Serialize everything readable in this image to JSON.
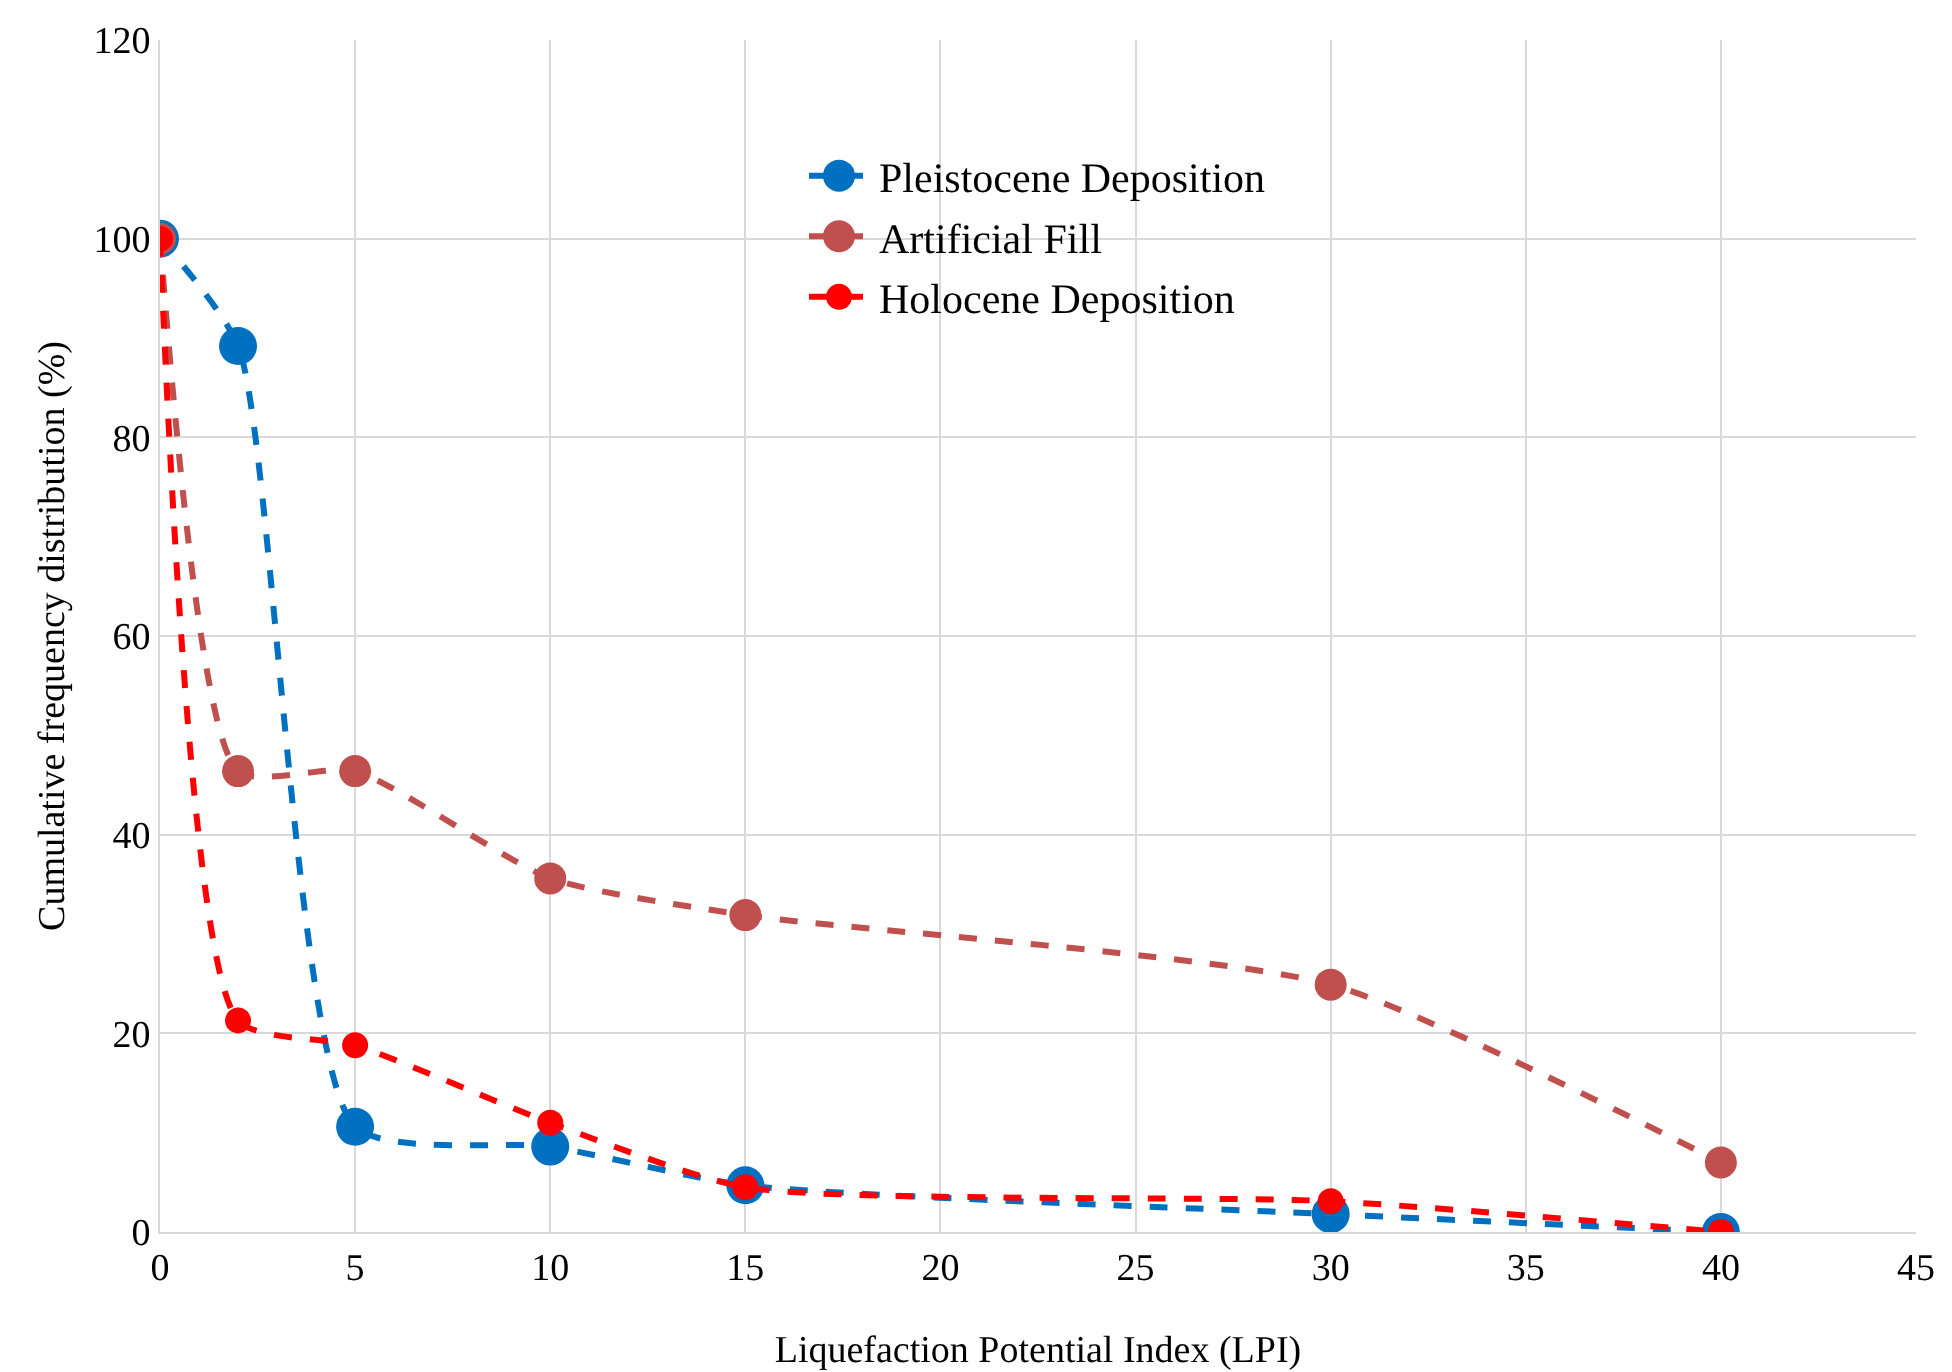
{
  "chart_data": {
    "type": "line",
    "xlabel": "Liquefaction Potential Index (LPI)",
    "ylabel": "Cumulative frequency distribution (%)",
    "x": [
      0,
      2,
      5,
      10,
      15,
      30,
      40
    ],
    "series": [
      {
        "name": "Pleistocene Deposition",
        "color": "#0070c0",
        "values": [
          100,
          89.2,
          10.6,
          8.6,
          4.7,
          1.8,
          0
        ]
      },
      {
        "name": "Artificial Fill",
        "color": "#c0504d",
        "values": [
          100,
          46.4,
          46.4,
          35.6,
          31.9,
          24.9,
          7
        ]
      },
      {
        "name": "Holocene Deposition",
        "color": "#ff0000",
        "values": [
          100,
          21.3,
          18.8,
          11,
          4.5,
          3.1,
          0
        ]
      }
    ],
    "xlim": [
      0,
      45
    ],
    "xticks": [
      0,
      5,
      10,
      15,
      20,
      25,
      30,
      35,
      40,
      45
    ],
    "ylim": [
      0,
      120
    ],
    "yticks": [
      0,
      20,
      40,
      60,
      80,
      100,
      120
    ],
    "grid": true,
    "legend": "top",
    "marker": "circle",
    "line_style": "dashed"
  }
}
